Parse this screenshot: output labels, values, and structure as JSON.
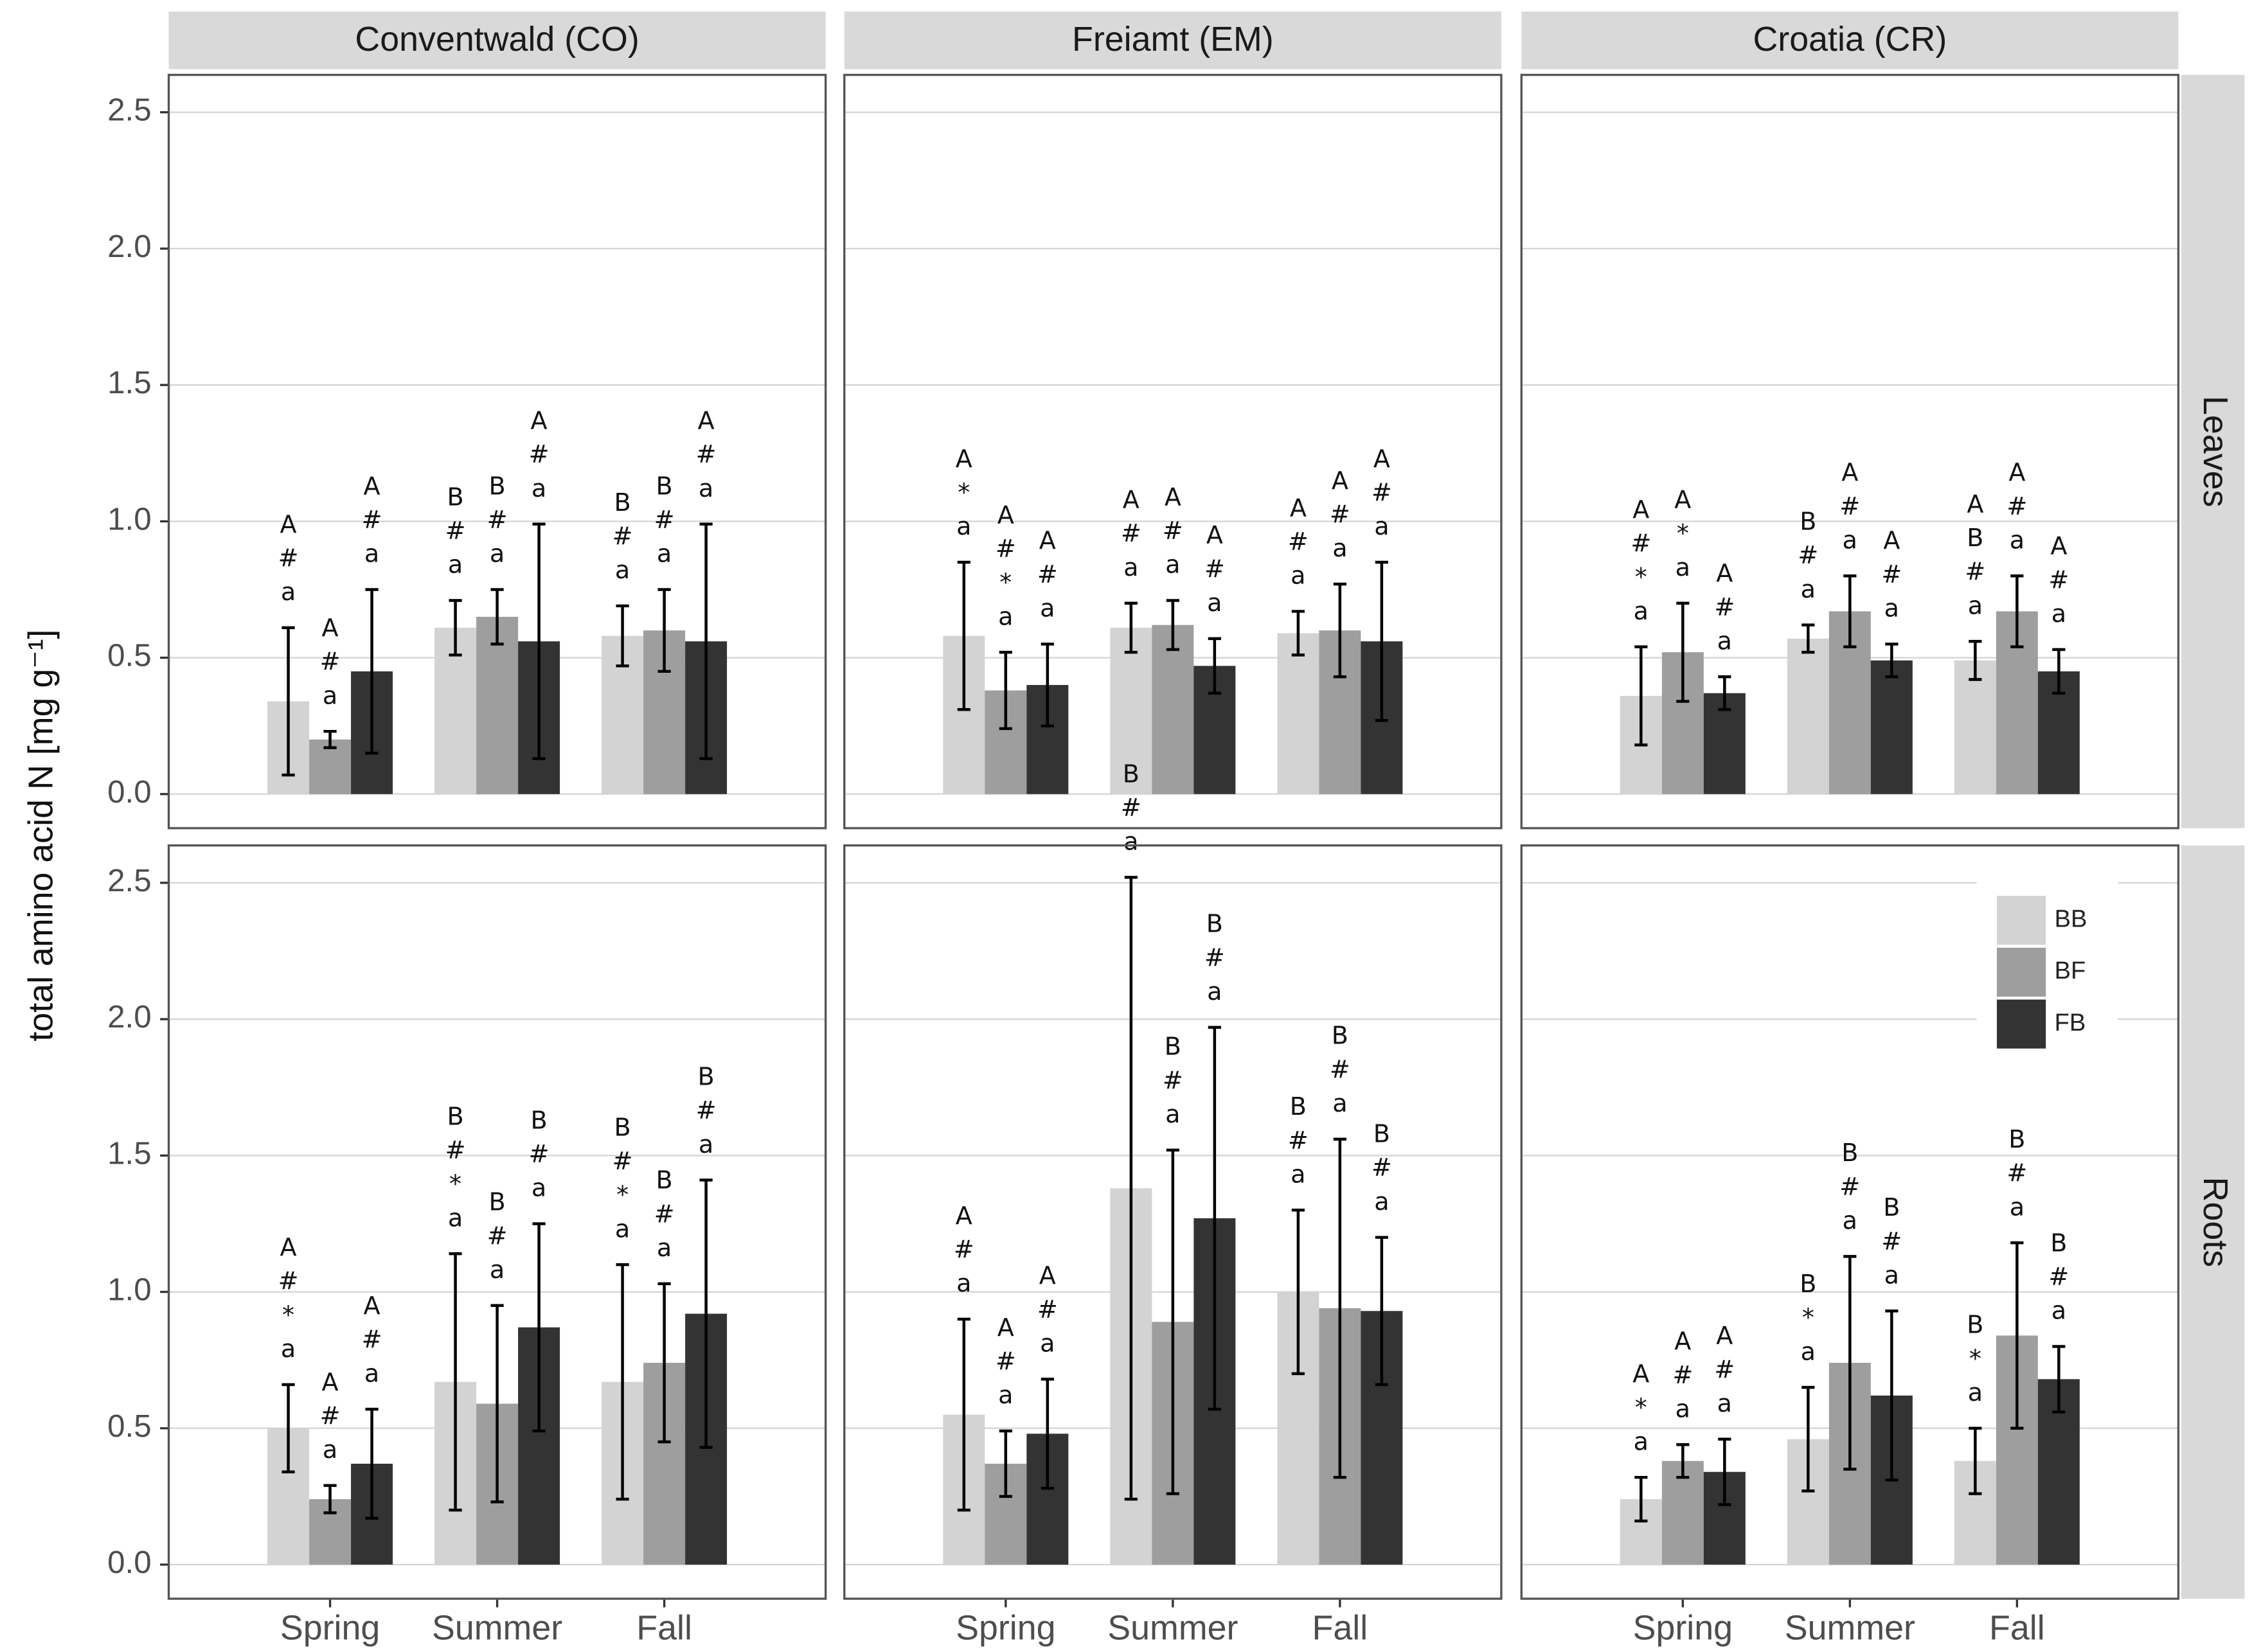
{
  "chart_data": {
    "type": "bar",
    "ylabel": "total amino acid N [mg g⁻¹]",
    "ylim": [
      -0.125,
      2.637
    ],
    "yticks": [
      {
        "value": 0,
        "label": "0.0"
      },
      0.5,
      {
        "value": 1,
        "label": "1.0"
      },
      1.5,
      {
        "value": 2,
        "label": "2.0"
      },
      2.5
    ],
    "grid": true,
    "legend": "top-right",
    "categories": [
      "Spring",
      "Summer",
      "Fall"
    ],
    "columns": [
      "Conventwald (CO)",
      "Freiamt (EM)",
      "Croatia (CR)"
    ],
    "series": [
      {
        "name": "BB",
        "color": "#d3d3d3"
      },
      {
        "name": "BF",
        "color": "#9e9e9e"
      },
      {
        "name": "FB",
        "color": "#333333"
      }
    ],
    "rows": [
      {
        "label": "Leaves",
        "panels": [
          {
            "data": [
              {
                "values": [
                  0.34,
                  0.61,
                  0.58
                ],
                "errors": [
                  0.27,
                  0.1,
                  0.11
                ],
                "annotations": [
                  "A#a",
                  "B#a",
                  "B#a"
                ]
              },
              {
                "values": [
                  0.2,
                  0.65,
                  0.6
                ],
                "errors": [
                  0.03,
                  0.1,
                  0.15
                ],
                "annotations": [
                  "A#a",
                  "B#a",
                  "B#a"
                ]
              },
              {
                "values": [
                  0.45,
                  0.56,
                  0.56
                ],
                "errors": [
                  0.3,
                  0.43,
                  0.43
                ],
                "annotations": [
                  "A#a",
                  "A#a",
                  "A#a"
                ]
              }
            ]
          },
          {
            "data": [
              {
                "values": [
                  0.58,
                  0.61,
                  0.59
                ],
                "errors": [
                  0.27,
                  0.09,
                  0.08
                ],
                "annotations": [
                  "A*a",
                  "A#a",
                  "A#a"
                ]
              },
              {
                "values": [
                  0.38,
                  0.62,
                  0.6
                ],
                "errors": [
                  0.14,
                  0.09,
                  0.17
                ],
                "annotations": [
                  "A#*a",
                  "A#a",
                  "A#a"
                ]
              },
              {
                "values": [
                  0.4,
                  0.47,
                  0.56
                ],
                "errors": [
                  0.15,
                  0.1,
                  0.29
                ],
                "annotations": [
                  "A#a",
                  "A#a",
                  "A#a"
                ]
              }
            ]
          },
          {
            "data": [
              {
                "values": [
                  0.36,
                  0.57,
                  0.49
                ],
                "errors": [
                  0.18,
                  0.05,
                  0.07
                ],
                "annotations": [
                  "A#*a",
                  "B#a",
                  "AB#a"
                ]
              },
              {
                "values": [
                  0.52,
                  0.67,
                  0.67
                ],
                "errors": [
                  0.18,
                  0.13,
                  0.13
                ],
                "annotations": [
                  "A*a",
                  "A#a",
                  "A#a"
                ]
              },
              {
                "values": [
                  0.37,
                  0.49,
                  0.45
                ],
                "errors": [
                  0.06,
                  0.06,
                  0.08
                ],
                "annotations": [
                  "A#a",
                  "A#a",
                  "A#a"
                ]
              }
            ]
          }
        ]
      },
      {
        "label": "Roots",
        "panels": [
          {
            "data": [
              {
                "values": [
                  0.5,
                  0.67,
                  0.67
                ],
                "errors": [
                  0.16,
                  0.47,
                  0.43
                ],
                "annotations": [
                  "A#*a",
                  "B#*a",
                  "B#*a"
                ]
              },
              {
                "values": [
                  0.24,
                  0.59,
                  0.74
                ],
                "errors": [
                  0.05,
                  0.36,
                  0.29
                ],
                "annotations": [
                  "A#a",
                  "B#a",
                  "B#a"
                ]
              },
              {
                "values": [
                  0.37,
                  0.87,
                  0.92
                ],
                "errors": [
                  0.2,
                  0.38,
                  0.49
                ],
                "annotations": [
                  "A#a",
                  "B#a",
                  "B#a"
                ]
              }
            ]
          },
          {
            "data": [
              {
                "values": [
                  0.55,
                  1.38,
                  1.0
                ],
                "errors": [
                  0.35,
                  1.14,
                  0.3
                ],
                "annotations": [
                  "A#a",
                  "B#a",
                  "B#a"
                ]
              },
              {
                "values": [
                  0.37,
                  0.89,
                  0.94
                ],
                "errors": [
                  0.12,
                  0.63,
                  0.62
                ],
                "annotations": [
                  "A#a",
                  "B#a",
                  "B#a"
                ]
              },
              {
                "values": [
                  0.48,
                  1.27,
                  0.93
                ],
                "errors": [
                  0.2,
                  0.7,
                  0.27
                ],
                "annotations": [
                  "A#a",
                  "B#a",
                  "B#a"
                ]
              }
            ]
          },
          {
            "data": [
              {
                "values": [
                  0.24,
                  0.46,
                  0.38
                ],
                "errors": [
                  0.08,
                  0.19,
                  0.12
                ],
                "annotations": [
                  "A*a",
                  "B*a",
                  "B*a"
                ]
              },
              {
                "values": [
                  0.38,
                  0.74,
                  0.84
                ],
                "errors": [
                  0.06,
                  0.39,
                  0.34
                ],
                "annotations": [
                  "A#a",
                  "B#a",
                  "B#a"
                ]
              },
              {
                "values": [
                  0.34,
                  0.62,
                  0.68
                ],
                "errors": [
                  0.12,
                  0.31,
                  0.12
                ],
                "annotations": [
                  "A#a",
                  "B#a",
                  "B#a"
                ]
              }
            ]
          }
        ]
      }
    ]
  }
}
